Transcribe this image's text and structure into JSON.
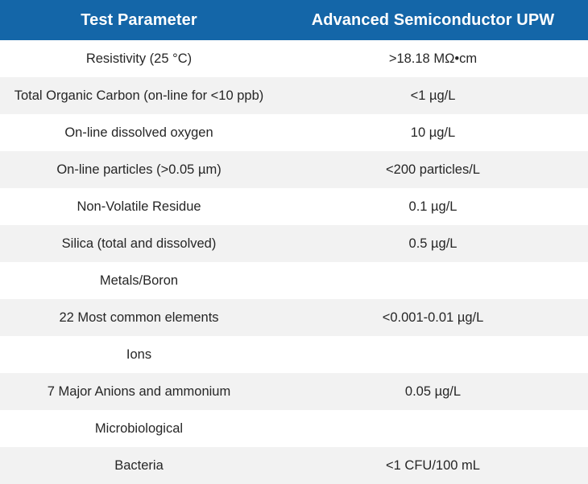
{
  "table": {
    "headers": [
      "Test Parameter",
      "Advanced Semiconductor UPW"
    ],
    "rows": [
      [
        "Resistivity (25 °C)",
        ">18.18 MΩ•cm"
      ],
      [
        "Total Organic Carbon (on-line for <10 ppb)",
        "<1 µg/L"
      ],
      [
        "On-line dissolved oxygen",
        "10 µg/L"
      ],
      [
        "On-line particles (>0.05 µm)",
        "<200 particles/L"
      ],
      [
        "Non-Volatile Residue",
        "0.1 µg/L"
      ],
      [
        "Silica (total and dissolved)",
        "0.5 µg/L"
      ],
      [
        "Metals/Boron",
        ""
      ],
      [
        "22 Most common elements",
        "<0.001-0.01 µg/L"
      ],
      [
        "Ions",
        ""
      ],
      [
        "7 Major Anions and ammonium",
        "0.05 µg/L"
      ],
      [
        "Microbiological",
        ""
      ],
      [
        "Bacteria",
        "<1 CFU/100 mL"
      ]
    ]
  },
  "colors": {
    "header_background": "#1466a8",
    "header_text": "#ffffff",
    "row_alt_background": "#f2f2f2",
    "body_text": "#262626"
  }
}
